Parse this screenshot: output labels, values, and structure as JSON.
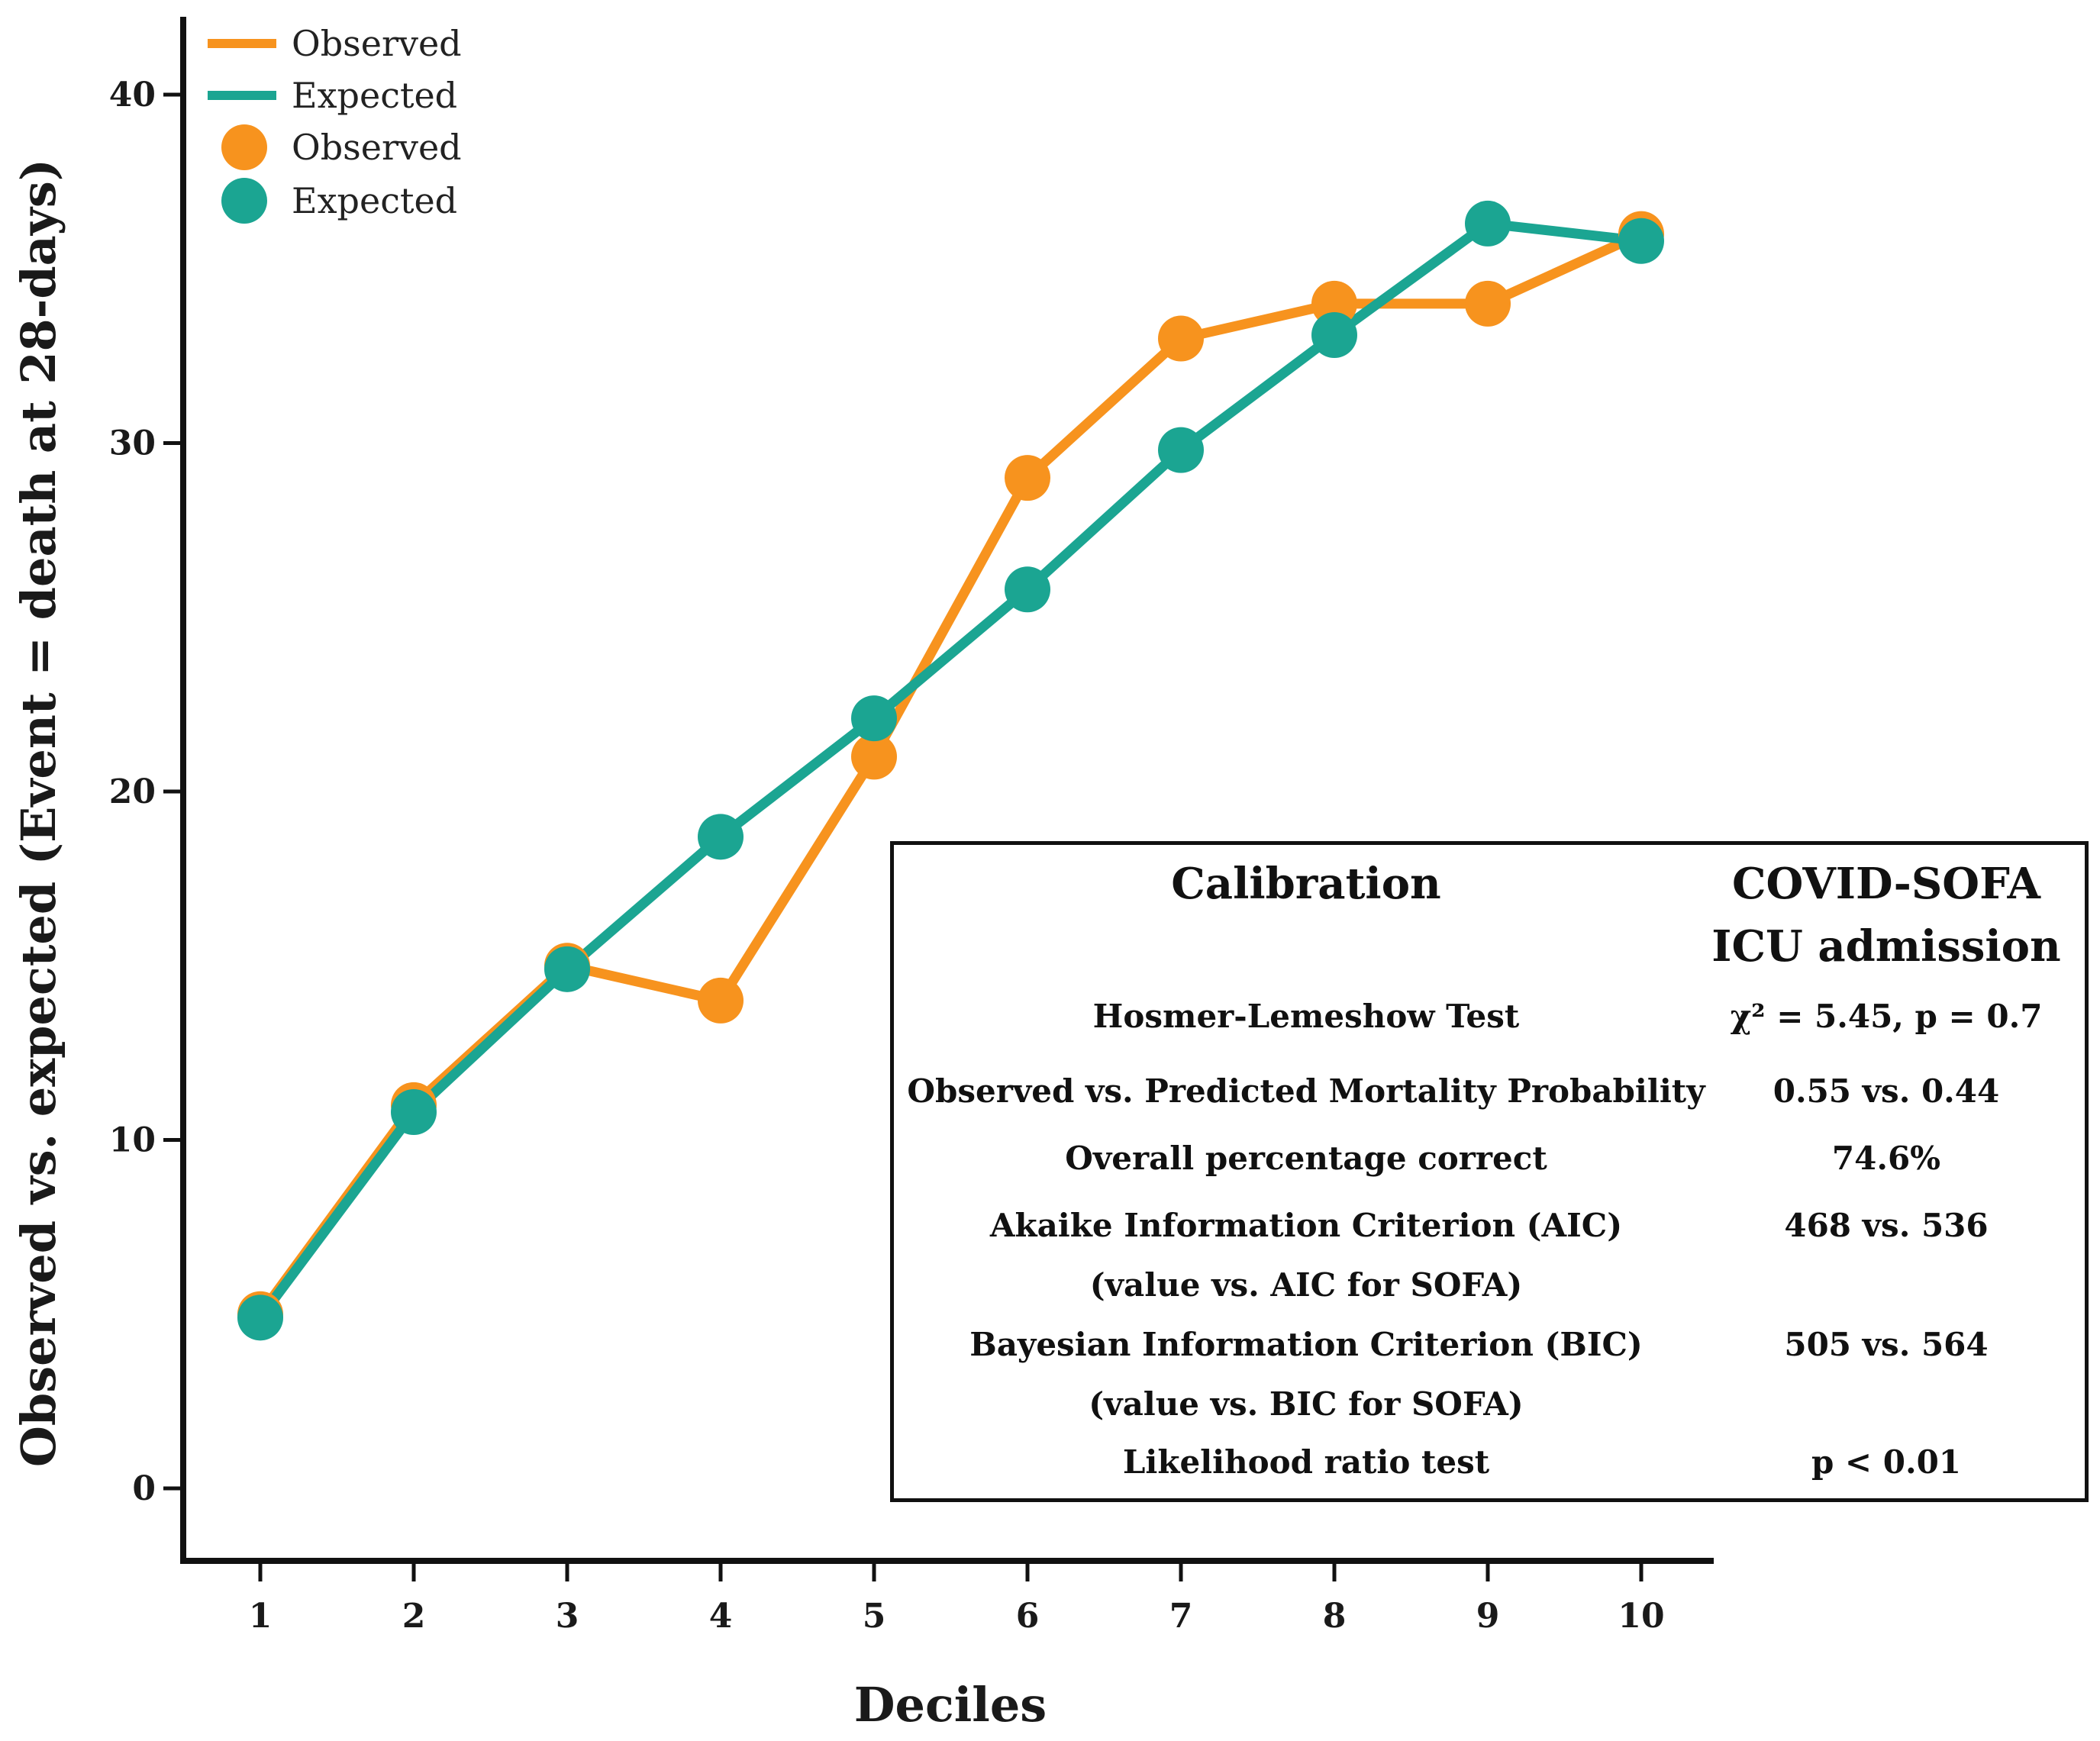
{
  "colors": {
    "observed": "#F7931E",
    "expected": "#1BA592",
    "axis": "#111111"
  },
  "chart_data": {
    "type": "line",
    "title": "",
    "xlabel": "Deciles",
    "ylabel": "Observed vs. expected (Event = death at 28-days)",
    "x": [
      1,
      2,
      3,
      4,
      5,
      6,
      7,
      8,
      9,
      10
    ],
    "xticks": [
      "1",
      "2",
      "3",
      "4",
      "5",
      "6",
      "7",
      "8",
      "9",
      "10"
    ],
    "yticks": [
      "0",
      "10",
      "20",
      "30",
      "40"
    ],
    "ylim": [
      -2,
      42
    ],
    "xlim": [
      0.5,
      10.5
    ],
    "grid": false,
    "legend": [
      "Observed",
      "Expected",
      "Observed",
      "Expected"
    ],
    "legend_position": "top-left",
    "series": [
      {
        "name": "Observed",
        "color_key": "observed",
        "values": [
          5,
          11,
          15,
          14,
          21,
          29,
          33,
          34,
          34,
          36
        ]
      },
      {
        "name": "Expected",
        "color_key": "expected",
        "values": [
          4.9,
          10.8,
          14.9,
          18.7,
          22.1,
          25.8,
          29.8,
          33.1,
          36.3,
          35.8
        ]
      }
    ]
  },
  "calibration_box": {
    "header_left": "Calibration",
    "header_right_line1": "COVID-SOFA",
    "header_right_line2": "ICU admission",
    "rows": [
      {
        "label": "Hosmer-Lemeshow Test",
        "value": "χ² = 5.45, p = 0.7"
      },
      {
        "label": "Observed vs. Predicted Mortality Probability",
        "value": "0.55 vs. 0.44"
      },
      {
        "label": "Overall percentage correct",
        "value": "74.6%"
      },
      {
        "label": "Akaike Information Criterion (AIC)",
        "label2": "(value vs. AIC for SOFA)",
        "value": "468 vs. 536"
      },
      {
        "label": "Bayesian Information Criterion (BIC)",
        "label2": "(value vs. BIC for SOFA)",
        "value": "505 vs. 564"
      },
      {
        "label": "Likelihood ratio test",
        "value": "p < 0.01"
      }
    ]
  }
}
